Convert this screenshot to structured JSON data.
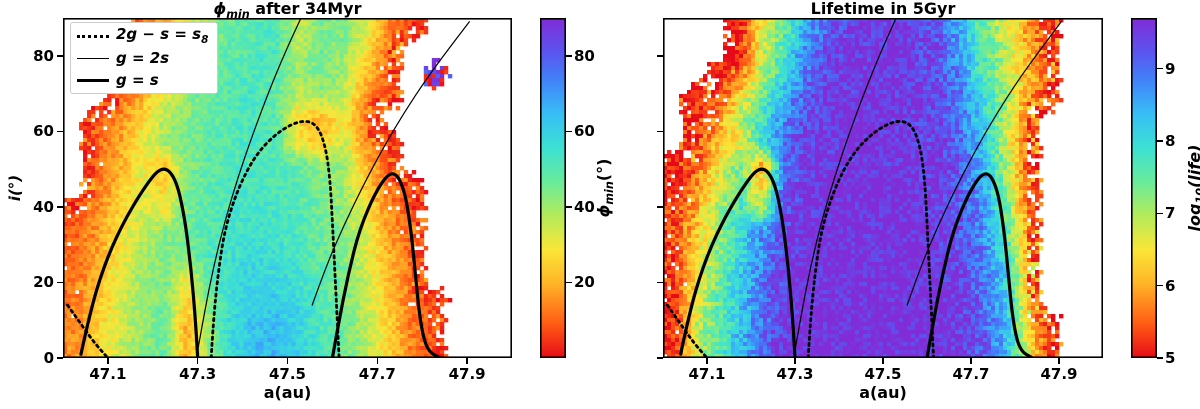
{
  "colormap": {
    "stops": [
      [
        0.0,
        "#e60a19"
      ],
      [
        0.1,
        "#ff5a14"
      ],
      [
        0.22,
        "#ffb428"
      ],
      [
        0.32,
        "#fae637"
      ],
      [
        0.42,
        "#b4eb5a"
      ],
      [
        0.52,
        "#69eb9b"
      ],
      [
        0.62,
        "#3ce1d2"
      ],
      [
        0.72,
        "#37bef5"
      ],
      [
        0.82,
        "#4182f8"
      ],
      [
        0.9,
        "#5a55f0"
      ],
      [
        1.0,
        "#802dd7"
      ]
    ]
  },
  "chart_data": [
    {
      "type": "heatmap",
      "title_sym": "ϕ",
      "title_sub": "min",
      "title_rest": " after 34Myr",
      "xlabel": "a(au)",
      "ylabel": "i(°)",
      "x_range": [
        47.0,
        48.0
      ],
      "y_range": [
        0,
        90
      ],
      "xticks": [
        "47.1",
        "47.3",
        "47.5",
        "47.7",
        "47.9"
      ],
      "yticks": [
        "0",
        "20",
        "40",
        "60",
        "80"
      ],
      "colorbar": {
        "sym": "ϕ",
        "sub": "min",
        "rest": "(°)",
        "vmin": 0,
        "vmax": 90,
        "ticks": [
          "20",
          "40",
          "60",
          "80"
        ]
      },
      "legend": [
        {
          "line": "dotted",
          "text": "2g − s = s",
          "sub": "8"
        },
        {
          "line": "thin",
          "text": "g = 2s",
          "sub": ""
        },
        {
          "line": "thick",
          "text": "g = s",
          "sub": ""
        }
      ],
      "grid": {
        "cols": 20,
        "rows": 15,
        "a_start": 47.025,
        "a_step": 0.05,
        "i_start": 87,
        "i_step": -6,
        "values": [
          [
            null,
            null,
            null,
            12,
            18,
            32,
            42,
            48,
            50,
            52,
            35,
            45,
            44,
            34,
            14,
            8,
            null,
            null,
            null,
            null
          ],
          [
            null,
            null,
            null,
            10,
            22,
            36,
            44,
            49,
            51,
            52,
            38,
            46,
            42,
            28,
            12,
            null,
            null,
            null,
            null,
            null
          ],
          [
            null,
            null,
            8,
            15,
            28,
            40,
            46,
            50,
            52,
            50,
            40,
            45,
            40,
            22,
            10,
            null,
            85,
            null,
            null,
            null
          ],
          [
            null,
            null,
            10,
            20,
            32,
            42,
            48,
            51,
            53,
            48,
            35,
            40,
            36,
            16,
            8,
            null,
            null,
            null,
            null,
            null
          ],
          [
            null,
            8,
            14,
            26,
            38,
            44,
            48,
            51,
            52,
            50,
            25,
            20,
            30,
            12,
            null,
            null,
            null,
            null,
            null,
            null
          ],
          [
            null,
            10,
            18,
            30,
            40,
            45,
            49,
            51,
            52,
            50,
            28,
            24,
            36,
            14,
            8,
            null,
            null,
            null,
            null,
            null
          ],
          [
            null,
            10,
            20,
            30,
            22,
            44,
            48,
            51,
            52,
            51,
            48,
            42,
            40,
            22,
            10,
            null,
            null,
            null,
            null,
            null
          ],
          [
            null,
            12,
            22,
            32,
            26,
            45,
            49,
            52,
            53,
            52,
            50,
            45,
            40,
            25,
            12,
            8,
            null,
            null,
            null,
            null
          ],
          [
            8,
            14,
            25,
            35,
            30,
            46,
            50,
            53,
            54,
            53,
            51,
            46,
            42,
            30,
            15,
            8,
            null,
            null,
            null,
            null
          ],
          [
            10,
            16,
            28,
            36,
            43,
            47,
            51,
            54,
            55,
            54,
            52,
            47,
            43,
            32,
            18,
            10,
            null,
            null,
            null,
            null
          ],
          [
            10,
            18,
            30,
            38,
            44,
            45,
            52,
            55,
            57,
            56,
            53,
            48,
            44,
            34,
            20,
            10,
            null,
            null,
            null,
            null
          ],
          [
            12,
            20,
            32,
            40,
            45,
            30,
            50,
            58,
            60,
            58,
            55,
            50,
            45,
            35,
            22,
            12,
            null,
            null,
            null,
            null
          ],
          [
            12,
            22,
            33,
            40,
            46,
            24,
            45,
            56,
            61,
            62,
            58,
            51,
            46,
            36,
            24,
            12,
            8,
            null,
            null,
            null
          ],
          [
            14,
            24,
            34,
            41,
            47,
            20,
            42,
            58,
            63,
            64,
            59,
            52,
            47,
            37,
            25,
            13,
            8,
            null,
            null,
            null
          ],
          [
            15,
            25,
            35,
            42,
            48,
            18,
            42,
            58,
            64,
            65,
            60,
            52,
            47,
            38,
            26,
            14,
            8,
            null,
            null,
            null
          ]
        ]
      }
    },
    {
      "type": "heatmap",
      "title": "Lifetime in 5Gyr",
      "xlabel": "a(au)",
      "x_range": [
        47.0,
        48.0
      ],
      "y_range": [
        0,
        90
      ],
      "xticks": [
        "47.1",
        "47.3",
        "47.5",
        "47.7",
        "47.9"
      ],
      "yticks": [],
      "colorbar": {
        "pre": "log",
        "sub": "10",
        "rest": "(life)",
        "vmin": 5,
        "vmax": 9.7,
        "ticks": [
          "5",
          "6",
          "7",
          "8",
          "9"
        ]
      },
      "grid": {
        "cols": 20,
        "rows": 15,
        "a_start": 47.025,
        "a_step": 0.05,
        "i_start": 87,
        "i_step": -6,
        "values": [
          [
            null,
            null,
            null,
            5.2,
            6.5,
            7.5,
            8.5,
            9.2,
            9.5,
            9.6,
            9.6,
            9.5,
            9.2,
            8.5,
            7.5,
            6.8,
            6.0,
            5.3,
            null,
            null
          ],
          [
            null,
            null,
            null,
            5.2,
            6.8,
            7.8,
            8.8,
            9.4,
            9.6,
            9.6,
            9.6,
            9.5,
            9.3,
            8.6,
            7.6,
            7.0,
            6.2,
            5.4,
            null,
            null
          ],
          [
            null,
            null,
            5.1,
            5.5,
            7.0,
            8.0,
            9.0,
            9.5,
            9.6,
            9.6,
            9.6,
            9.5,
            9.3,
            8.8,
            7.8,
            7.0,
            6.3,
            5.5,
            null,
            null
          ],
          [
            null,
            5.1,
            5.4,
            6.5,
            7.5,
            8.5,
            9.2,
            9.6,
            9.6,
            9.6,
            9.6,
            9.5,
            9.4,
            9.0,
            8.0,
            7.2,
            6.0,
            5.2,
            null,
            null
          ],
          [
            null,
            5.2,
            5.8,
            7.0,
            7.8,
            8.8,
            9.4,
            9.6,
            9.7,
            9.6,
            9.6,
            9.5,
            9.4,
            9.0,
            8.2,
            7.0,
            5.8,
            null,
            null,
            null
          ],
          [
            null,
            5.3,
            6.2,
            6.5,
            8.0,
            9.0,
            9.5,
            9.6,
            9.7,
            9.7,
            9.6,
            9.6,
            9.4,
            9.1,
            8.4,
            7.0,
            5.6,
            null,
            null,
            null
          ],
          [
            5.1,
            5.5,
            6.5,
            7.4,
            6.0,
            9.0,
            9.5,
            9.6,
            9.7,
            9.7,
            9.6,
            9.6,
            9.5,
            9.2,
            8.5,
            7.2,
            5.5,
            null,
            null,
            null
          ],
          [
            5.2,
            5.8,
            6.8,
            7.6,
            6.4,
            9.2,
            9.6,
            9.7,
            9.7,
            9.7,
            9.7,
            9.6,
            9.5,
            9.2,
            8.6,
            7.4,
            5.6,
            null,
            null,
            null
          ],
          [
            5.3,
            6.0,
            7.0,
            7.8,
            7.0,
            9.3,
            9.6,
            9.7,
            9.7,
            9.7,
            9.7,
            9.6,
            9.5,
            9.3,
            8.8,
            7.6,
            5.8,
            null,
            null,
            null
          ],
          [
            5.4,
            6.2,
            7.2,
            8.0,
            8.8,
            9.4,
            9.6,
            9.7,
            9.7,
            9.7,
            9.7,
            9.7,
            9.6,
            9.3,
            8.8,
            7.8,
            6.0,
            null,
            null,
            null
          ],
          [
            5.3,
            6.4,
            7.3,
            8.0,
            8.8,
            9.4,
            9.7,
            9.7,
            9.7,
            9.7,
            9.7,
            9.7,
            9.6,
            9.4,
            9.0,
            8.0,
            6.2,
            null,
            null,
            null
          ],
          [
            5.3,
            6.5,
            7.4,
            8.2,
            9.0,
            9.5,
            9.7,
            9.7,
            9.7,
            9.7,
            9.7,
            9.7,
            9.6,
            9.4,
            9.0,
            8.2,
            6.4,
            null,
            null,
            null
          ],
          [
            5.2,
            6.6,
            7.5,
            8.2,
            9.0,
            9.5,
            9.7,
            9.7,
            9.7,
            9.7,
            9.7,
            9.7,
            9.7,
            9.5,
            9.1,
            8.4,
            6.5,
            null,
            null,
            null
          ],
          [
            5.2,
            6.8,
            7.6,
            8.3,
            9.0,
            9.5,
            9.7,
            9.7,
            9.7,
            9.7,
            9.7,
            9.7,
            9.7,
            9.5,
            9.2,
            8.5,
            6.6,
            5.2,
            null,
            null
          ],
          [
            5.2,
            6.8,
            7.6,
            8.4,
            9.1,
            9.6,
            9.7,
            9.7,
            9.7,
            9.7,
            9.7,
            9.7,
            9.7,
            9.5,
            9.2,
            8.5,
            6.8,
            5.3,
            null,
            null
          ]
        ]
      }
    }
  ],
  "contours": {
    "paths": [
      {
        "name": "g-equals-s-left-lobe",
        "style": "thick",
        "points": [
          [
            47.04,
            1
          ],
          [
            47.06,
            12
          ],
          [
            47.09,
            24
          ],
          [
            47.13,
            35
          ],
          [
            47.18,
            45
          ],
          [
            47.22,
            51
          ],
          [
            47.25,
            48
          ],
          [
            47.27,
            38
          ],
          [
            47.285,
            24
          ],
          [
            47.295,
            10
          ],
          [
            47.3,
            0
          ]
        ]
      },
      {
        "name": "g-equals-s-right-lobe",
        "style": "thick",
        "points": [
          [
            47.6,
            0
          ],
          [
            47.615,
            10
          ],
          [
            47.635,
            22
          ],
          [
            47.66,
            34
          ],
          [
            47.7,
            45
          ],
          [
            47.735,
            50
          ],
          [
            47.76,
            45
          ],
          [
            47.775,
            34
          ],
          [
            47.785,
            22
          ],
          [
            47.795,
            10
          ],
          [
            47.81,
            2
          ],
          [
            47.84,
            0
          ]
        ]
      },
      {
        "name": "2g-minus-s-equals-s8-arch",
        "style": "dotted",
        "points": [
          [
            47.33,
            0
          ],
          [
            47.335,
            10
          ],
          [
            47.345,
            22
          ],
          [
            47.36,
            34
          ],
          [
            47.39,
            45
          ],
          [
            47.43,
            54
          ],
          [
            47.48,
            60
          ],
          [
            47.53,
            63
          ],
          [
            47.565,
            62
          ],
          [
            47.585,
            56
          ],
          [
            47.595,
            47
          ],
          [
            47.6,
            36
          ],
          [
            47.605,
            24
          ],
          [
            47.61,
            12
          ],
          [
            47.615,
            0
          ]
        ]
      },
      {
        "name": "2g-minus-s-equals-s8-corner",
        "style": "dotted",
        "points": [
          [
            47.01,
            14
          ],
          [
            47.04,
            9
          ],
          [
            47.07,
            4
          ],
          [
            47.1,
            0
          ]
        ]
      },
      {
        "name": "g-equals-2s-left",
        "style": "thin",
        "points": [
          [
            47.3,
            2
          ],
          [
            47.315,
            12
          ],
          [
            47.335,
            24
          ],
          [
            47.36,
            36
          ],
          [
            47.39,
            48
          ],
          [
            47.425,
            60
          ],
          [
            47.46,
            71
          ],
          [
            47.495,
            81
          ],
          [
            47.53,
            90
          ]
        ]
      },
      {
        "name": "g-equals-2s-right",
        "style": "thin",
        "points": [
          [
            47.555,
            14
          ],
          [
            47.585,
            24
          ],
          [
            47.625,
            35
          ],
          [
            47.67,
            46
          ],
          [
            47.715,
            56
          ],
          [
            47.76,
            65
          ],
          [
            47.81,
            74
          ],
          [
            47.86,
            82
          ],
          [
            47.905,
            89
          ]
        ]
      }
    ]
  }
}
